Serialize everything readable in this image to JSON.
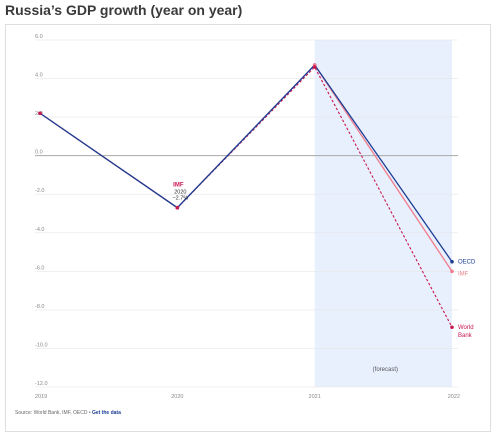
{
  "chart_data": {
    "type": "line",
    "title": "Russia’s GDP growth (year on year)",
    "x": [
      "2019",
      "2020",
      "2021",
      "2022"
    ],
    "ylim": [
      -12.0,
      6.0
    ],
    "yticks": [
      "6.0",
      "4.0",
      "2.0",
      "0.0",
      "-2.0",
      "-4.0",
      "-6.0",
      "-8.0",
      "-10.0",
      "-12.0"
    ],
    "grid": true,
    "series": [
      {
        "name": "OECD",
        "values": [
          2.2,
          -2.7,
          4.7,
          -5.5
        ],
        "color": "#1c3f94",
        "style": "solid"
      },
      {
        "name": "IMF",
        "values": [
          2.2,
          -2.7,
          4.7,
          -6.0
        ],
        "color": "#f07c8c",
        "style": "solid"
      },
      {
        "name": "World Bank",
        "values": [
          2.2,
          -2.7,
          4.6,
          -8.9
        ],
        "color": "#c8184e",
        "style": "dashed"
      }
    ],
    "forecast_label": "(forecast)",
    "forecast_region": [
      "2021",
      "2022"
    ],
    "annotation": {
      "title": "IMF",
      "year": "2020",
      "value": "−2.7%"
    },
    "end_labels": [
      "OECD",
      "IMF",
      "World",
      "Bank"
    ]
  },
  "source": {
    "text": "Source: World Bank, IMF, OECD • ",
    "link": "Get the data"
  },
  "colors": {
    "forecast_band": "#e8effd",
    "grid": "#e6e6e6",
    "zero_line": "#a8a8a8",
    "annotation": "#c8184e"
  }
}
